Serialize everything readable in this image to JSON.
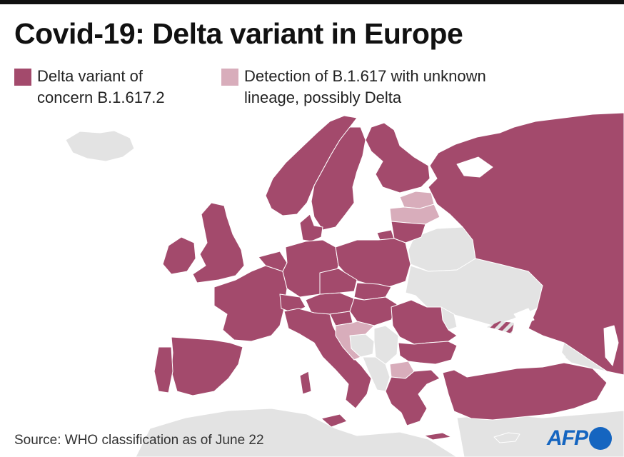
{
  "title": "Covid-19: Delta variant in Europe",
  "legend": [
    {
      "label": "Delta variant of concern B.1.617.2",
      "color": "#a34a6c"
    },
    {
      "label": "Detection of B.1.617 with unknown lineage, possibly Delta",
      "color": "#d8adbb"
    }
  ],
  "colors": {
    "delta": "#a34a6c",
    "possible": "#d8adbb",
    "no_data": "#e3e3e3",
    "sea": "#ffffff",
    "border": "#ffffff",
    "logo_blue": "#1565c0"
  },
  "source": "Source: WHO classification as of June 22",
  "logo": {
    "text": "AFP"
  }
}
